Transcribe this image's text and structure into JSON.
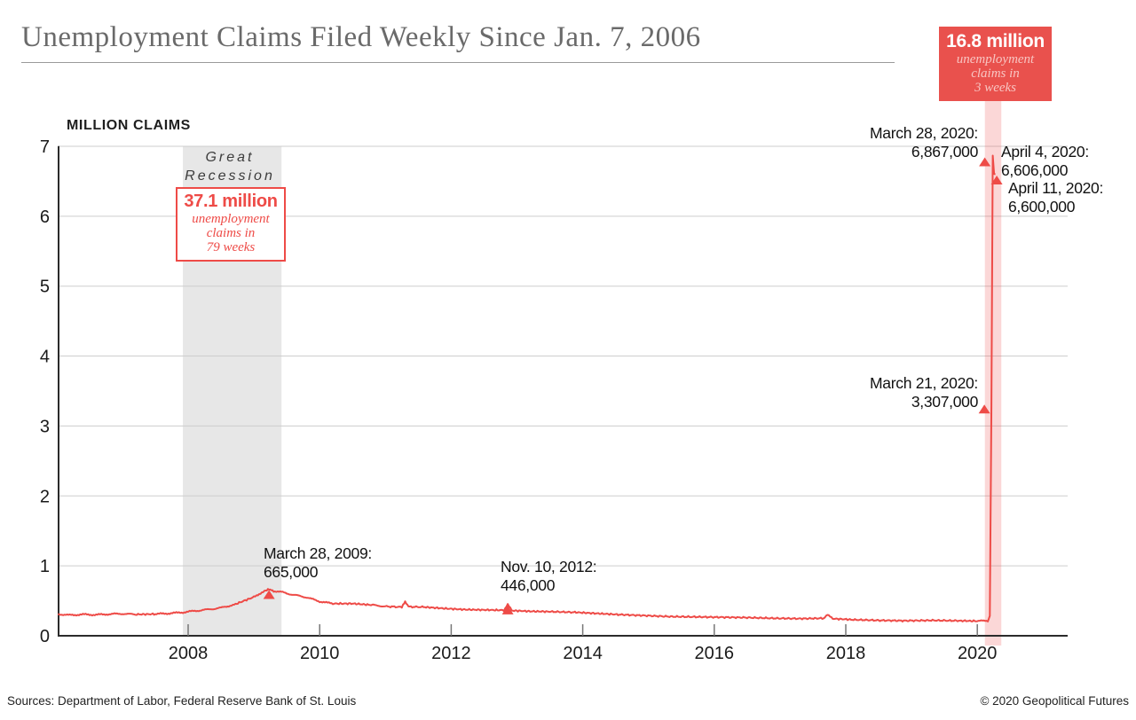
{
  "header": {
    "title": "Unemployment Claims Filed Weekly Since Jan. 7, 2006"
  },
  "y_axis_title": "MILLION CLAIMS",
  "recession_label": {
    "line1": "Great",
    "line2": "Recession"
  },
  "callouts": {
    "covid": {
      "headline": "16.8 million",
      "lines": [
        "unemployment",
        "claims in",
        "3 weeks"
      ]
    },
    "recession": {
      "headline": "37.1 million",
      "lines": [
        "unemployment",
        "claims in",
        "79 weeks"
      ]
    }
  },
  "footer": {
    "sources": "Sources: Department of Labor, Federal Reserve Bank of St. Louis",
    "copyright": "© 2020 Geopolitical Futures"
  },
  "colors": {
    "line_red": "#ee4b47",
    "callout_red_bg": "#e9514d",
    "callout_sub_pink": "#f8c5c2",
    "spike_band_rgba": "rgba(238,75,71,0.22)",
    "recession_band_gray": "#e7e7e7",
    "gridline_gray": "#cdcdcd",
    "axis_dark": "#2b2b2b",
    "title_gray": "#6a6a6a"
  },
  "chart_data": {
    "type": "line",
    "title": "Unemployment Claims Filed Weekly Since Jan. 7, 2006",
    "ylabel": "MILLION CLAIMS",
    "ylim": [
      0,
      7
    ],
    "yticks": [
      0,
      1,
      2,
      3,
      4,
      5,
      6,
      7
    ],
    "xticks": [
      2008,
      2010,
      2012,
      2014,
      2016,
      2018,
      2020
    ],
    "x_range": [
      2006.02,
      2021.35
    ],
    "grid": "horizontal",
    "legend": "none",
    "recession_band": {
      "label": "Great Recession",
      "start": 2007.92,
      "end": 2009.42
    },
    "spike_band": {
      "center": 2020.24,
      "width_years": 0.25
    },
    "series": [
      {
        "name": "Weekly unemployment claims (millions)",
        "anchors": [
          [
            2006.02,
            0.31
          ],
          [
            2006.2,
            0.295
          ],
          [
            2006.4,
            0.305
          ],
          [
            2006.6,
            0.3
          ],
          [
            2006.8,
            0.31
          ],
          [
            2007.0,
            0.315
          ],
          [
            2007.2,
            0.305
          ],
          [
            2007.5,
            0.31
          ],
          [
            2007.7,
            0.32
          ],
          [
            2007.92,
            0.335
          ],
          [
            2008.1,
            0.355
          ],
          [
            2008.3,
            0.375
          ],
          [
            2008.5,
            0.4
          ],
          [
            2008.7,
            0.445
          ],
          [
            2008.85,
            0.5
          ],
          [
            2009.0,
            0.555
          ],
          [
            2009.1,
            0.61
          ],
          [
            2009.18,
            0.645
          ],
          [
            2009.23,
            0.665
          ],
          [
            2009.3,
            0.64
          ],
          [
            2009.42,
            0.625
          ],
          [
            2009.6,
            0.585
          ],
          [
            2009.8,
            0.55
          ],
          [
            2010.0,
            0.49
          ],
          [
            2010.2,
            0.46
          ],
          [
            2010.5,
            0.46
          ],
          [
            2010.8,
            0.44
          ],
          [
            2011.0,
            0.42
          ],
          [
            2011.25,
            0.41
          ],
          [
            2011.3,
            0.49
          ],
          [
            2011.35,
            0.415
          ],
          [
            2011.6,
            0.41
          ],
          [
            2011.9,
            0.39
          ],
          [
            2012.2,
            0.375
          ],
          [
            2012.5,
            0.37
          ],
          [
            2012.8,
            0.365
          ],
          [
            2012.86,
            0.446
          ],
          [
            2012.92,
            0.36
          ],
          [
            2013.2,
            0.35
          ],
          [
            2013.5,
            0.345
          ],
          [
            2013.9,
            0.335
          ],
          [
            2014.2,
            0.32
          ],
          [
            2014.5,
            0.305
          ],
          [
            2014.9,
            0.29
          ],
          [
            2015.3,
            0.275
          ],
          [
            2015.7,
            0.27
          ],
          [
            2016.1,
            0.265
          ],
          [
            2016.5,
            0.26
          ],
          [
            2016.9,
            0.25
          ],
          [
            2017.3,
            0.245
          ],
          [
            2017.66,
            0.25
          ],
          [
            2017.72,
            0.298
          ],
          [
            2017.8,
            0.245
          ],
          [
            2018.1,
            0.23
          ],
          [
            2018.5,
            0.22
          ],
          [
            2018.9,
            0.215
          ],
          [
            2019.3,
            0.22
          ],
          [
            2019.7,
            0.215
          ],
          [
            2020.0,
            0.21
          ],
          [
            2020.16,
            0.215
          ],
          [
            2020.19,
            0.282
          ],
          [
            2020.215,
            3.307
          ],
          [
            2020.235,
            6.867
          ],
          [
            2020.255,
            6.606
          ],
          [
            2020.275,
            6.6
          ]
        ]
      }
    ],
    "annotations": [
      {
        "date": "March 28, 2009:",
        "value_text": "665,000",
        "year": 2009.23,
        "value": 0.665,
        "marker": true
      },
      {
        "date": "Nov. 10, 2012:",
        "value_text": "446,000",
        "year": 2012.86,
        "value": 0.446,
        "marker": true
      },
      {
        "date": "March 21, 2020:",
        "value_text": "3,307,000",
        "year": 2020.215,
        "value": 3.307,
        "marker": true
      },
      {
        "date": "March 28, 2020:",
        "value_text": "6,867,000",
        "year": 2020.235,
        "value": 6.867,
        "marker": true
      },
      {
        "date": "April 4, 2020:",
        "value_text": "6,606,000",
        "year": 2020.255,
        "value": 6.606,
        "marker": true
      },
      {
        "date": "April 11, 2020:",
        "value_text": "6,600,000",
        "year": 2020.275,
        "value": 6.6,
        "marker": false
      }
    ]
  }
}
